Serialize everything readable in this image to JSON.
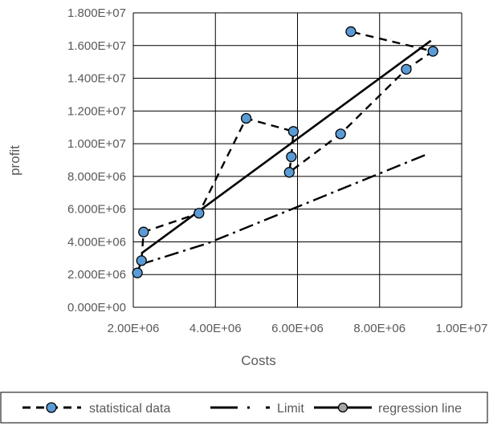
{
  "chart_data": {
    "type": "scatter",
    "xlabel": "Costs",
    "ylabel": "profit",
    "xlim": [
      2000000,
      10000000
    ],
    "ylim": [
      0,
      18000000
    ],
    "x_ticks": [
      {
        "value": 2000000,
        "label": "2.00E+06"
      },
      {
        "value": 4000000,
        "label": "4.00E+06"
      },
      {
        "value": 6000000,
        "label": "6.00E+06"
      },
      {
        "value": 8000000,
        "label": "8.00E+06"
      },
      {
        "value": 10000000,
        "label": "1.00E+07"
      }
    ],
    "y_ticks": [
      {
        "value": 0,
        "label": "0.000E+00"
      },
      {
        "value": 2000000,
        "label": "2.000E+06"
      },
      {
        "value": 4000000,
        "label": "4.000E+06"
      },
      {
        "value": 6000000,
        "label": "6.000E+06"
      },
      {
        "value": 8000000,
        "label": "8.000E+06"
      },
      {
        "value": 10000000,
        "label": "1.000E+07"
      },
      {
        "value": 12000000,
        "label": "1.200E+07"
      },
      {
        "value": 14000000,
        "label": "1.400E+07"
      },
      {
        "value": 16000000,
        "label": "1.600E+07"
      },
      {
        "value": 18000000,
        "label": "1.800E+07"
      }
    ],
    "grid": true,
    "legend_position": "bottom",
    "series": [
      {
        "name": "statistical data",
        "style": "dashed-markers",
        "color": "#000000",
        "marker_color": "#5b9bd5",
        "points": [
          [
            2100000,
            2100000
          ],
          [
            2200000,
            2850000
          ],
          [
            2250000,
            4600000
          ],
          [
            3600000,
            5750000
          ],
          [
            4750000,
            11550000
          ],
          [
            5900000,
            10750000
          ],
          [
            5850000,
            9200000
          ],
          [
            5800000,
            8250000
          ],
          [
            7050000,
            10600000
          ],
          [
            8650000,
            14550000
          ],
          [
            9300000,
            15650000
          ],
          [
            7300000,
            16850000
          ]
        ]
      },
      {
        "name": "Limit",
        "style": "dash-dot",
        "color": "#000000",
        "points": [
          [
            2150000,
            2600000
          ],
          [
            3800000,
            3900000
          ],
          [
            9200000,
            9400000
          ]
        ]
      },
      {
        "name": "regression line",
        "style": "solid",
        "color": "#000000",
        "marker_color": "#a5a5a5",
        "points": [
          [
            2200000,
            3300000
          ],
          [
            9250000,
            16300000
          ]
        ]
      }
    ]
  }
}
